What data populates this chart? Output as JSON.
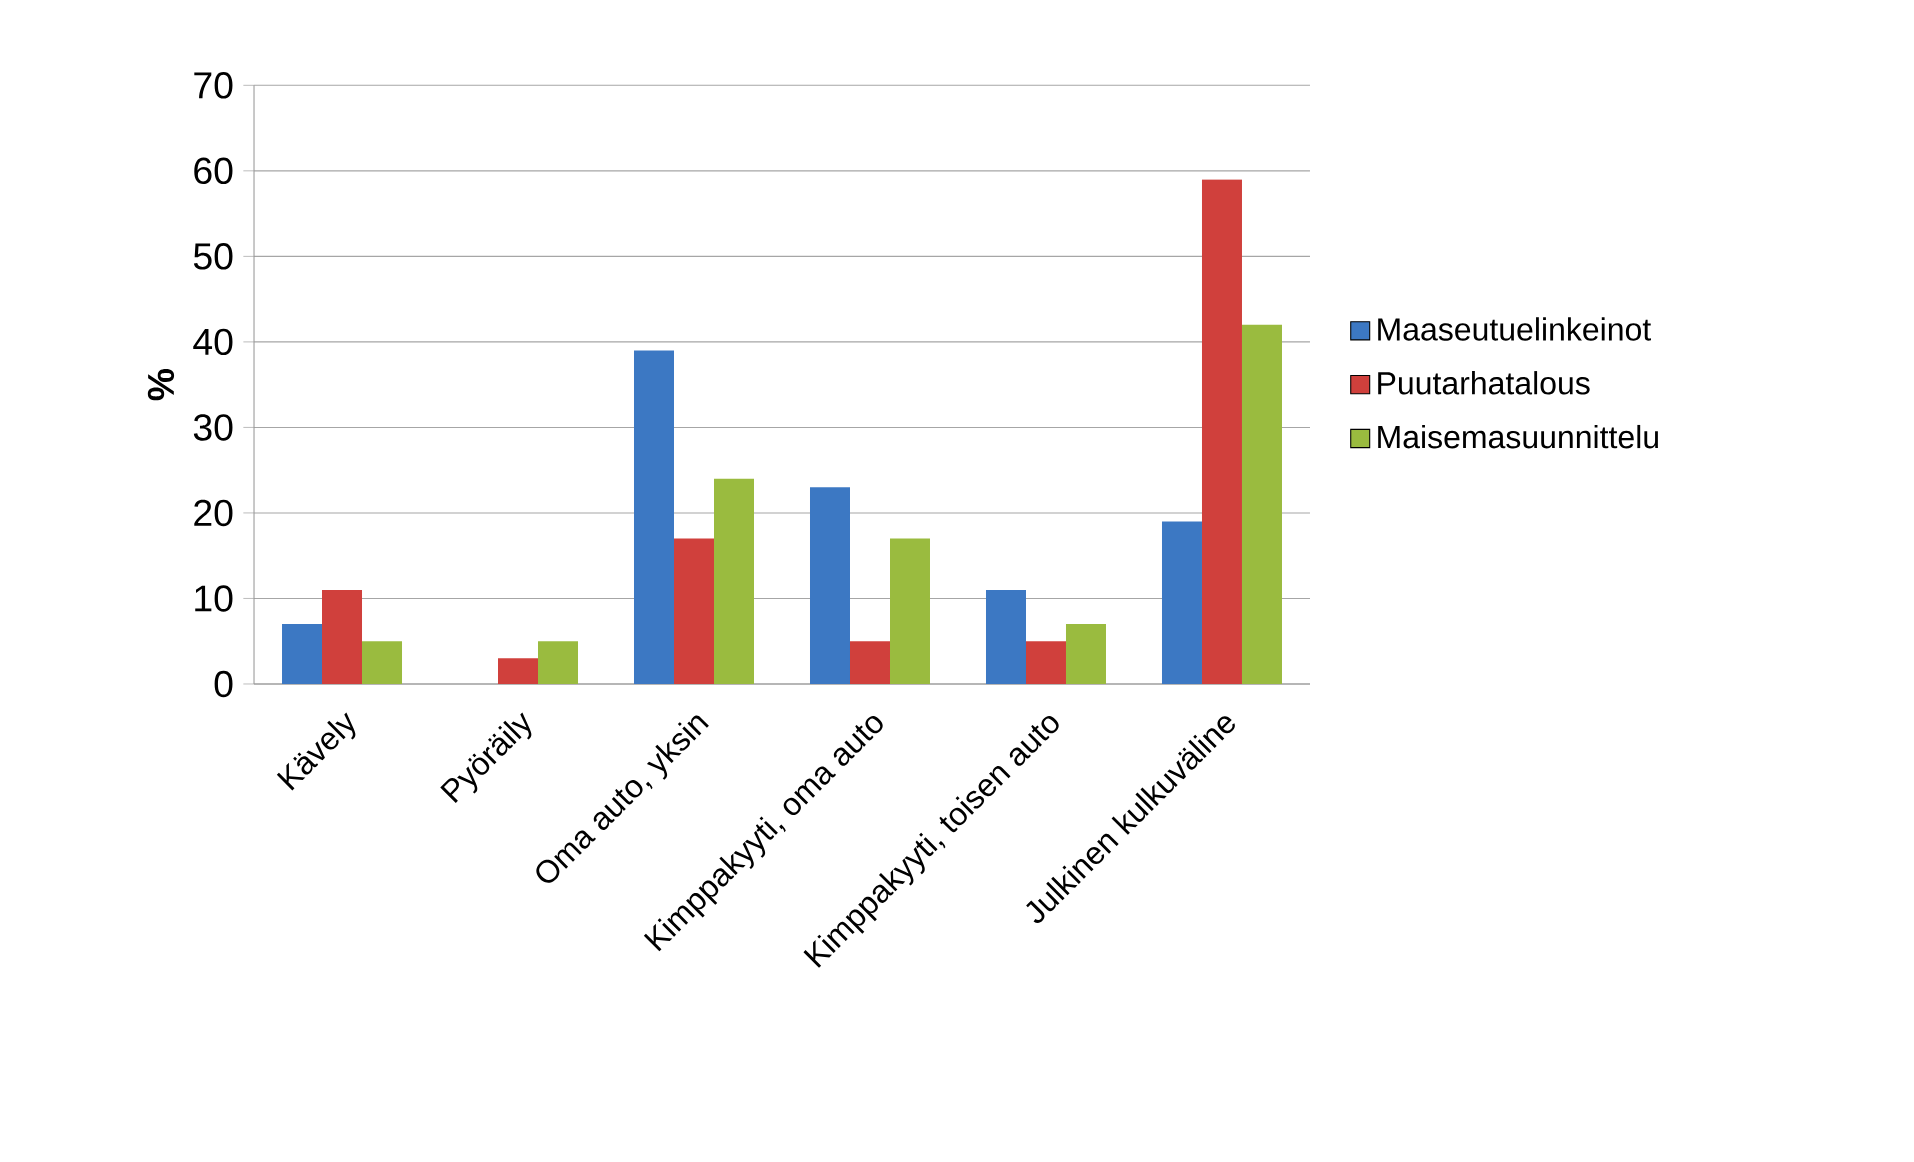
{
  "chart_data": {
    "type": "bar",
    "ylabel": "%",
    "categories": [
      "Kävely",
      "Pyöräily",
      "Oma auto, yksin",
      "Kimppakyyti, oma auto",
      "Kimppakyyti, toisen auto",
      "Julkinen kulkuväline"
    ],
    "series": [
      {
        "name": "Maaseutuelinkeinot",
        "color": "#3c78c3",
        "values": [
          7,
          0,
          39,
          23,
          11,
          19
        ]
      },
      {
        "name": "Puutarhatalous",
        "color": "#d0403c",
        "values": [
          11,
          3,
          17,
          5,
          5,
          59
        ]
      },
      {
        "name": "Maisemasuunnittelu",
        "color": "#9abb3f",
        "values": [
          5,
          5,
          24,
          17,
          7,
          42
        ]
      }
    ],
    "ylim": [
      0,
      70
    ],
    "yticks": [
      0,
      10,
      20,
      30,
      40,
      50,
      60,
      70
    ],
    "grid": "y",
    "legend": "right"
  }
}
